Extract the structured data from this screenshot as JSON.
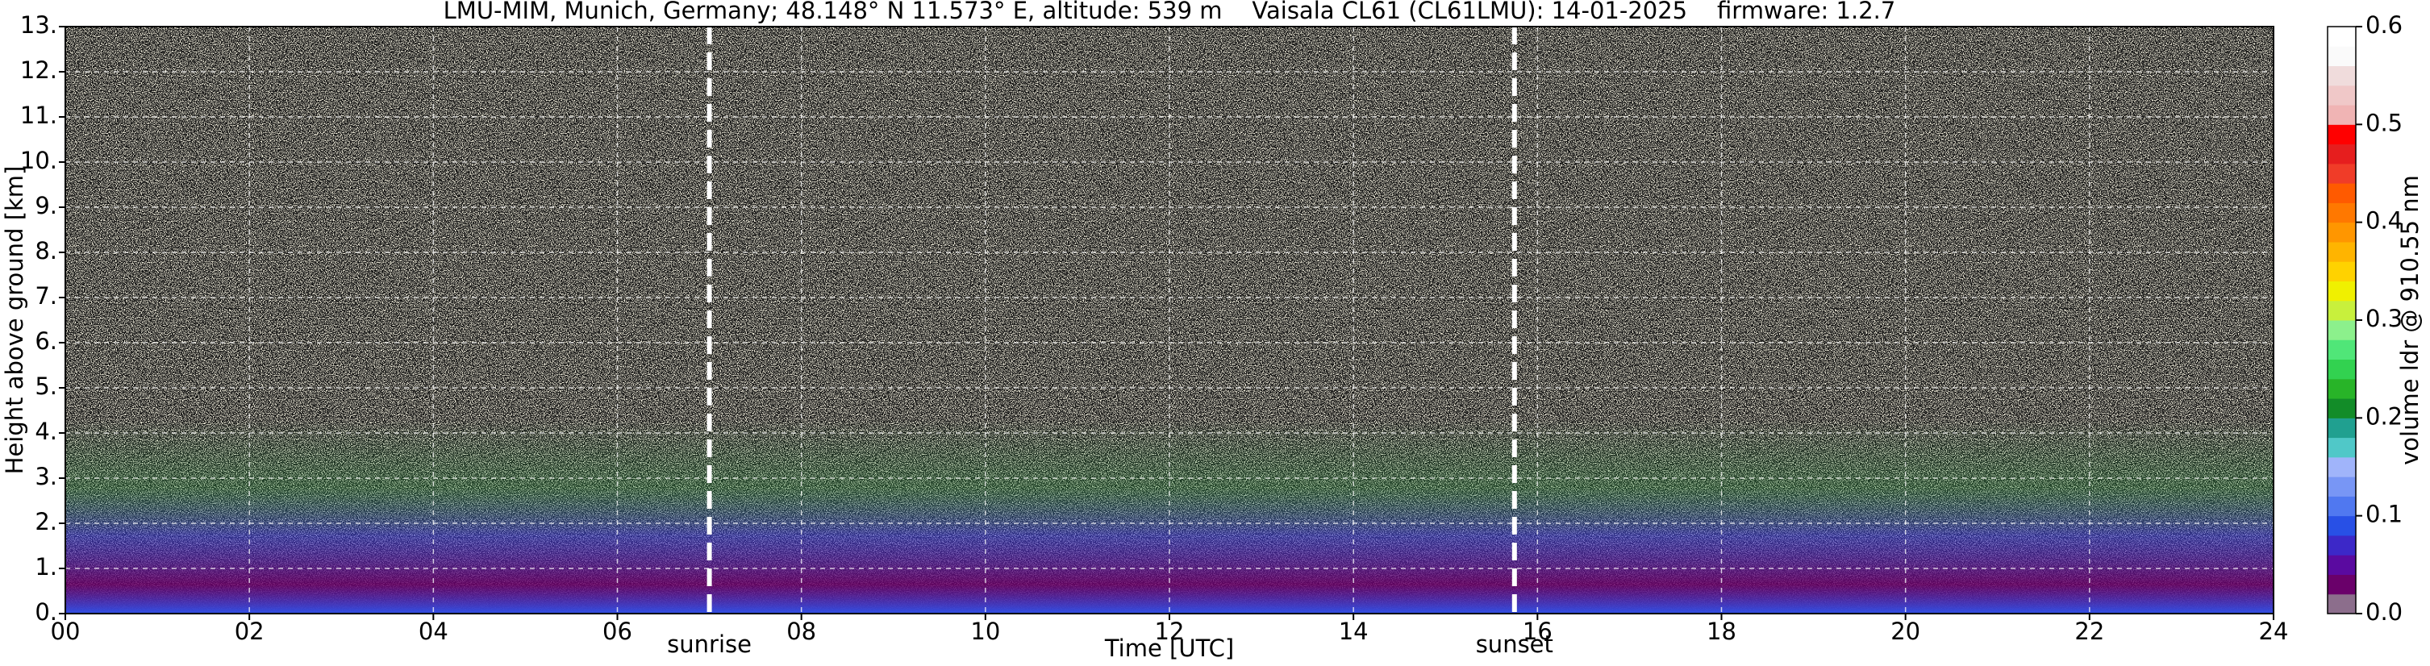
{
  "chart_data": {
    "type": "heatmap",
    "title": "LMU-MIM, Munich, Germany; 48.148° N 11.573° E, altitude: 539 m    Vaisala CL61 (CL61LMU): 14-01-2025    firmware: 1.2.7",
    "x_label": "Time [UTC]",
    "y_label": "Height above ground [km]",
    "xlim": [
      0,
      24
    ],
    "xticks": [
      {
        "value": 0,
        "label": "00"
      },
      {
        "value": 2,
        "label": "02"
      },
      {
        "value": 4,
        "label": "04"
      },
      {
        "value": 6,
        "label": "06"
      },
      {
        "value": 8,
        "label": "08"
      },
      {
        "value": 10,
        "label": "10"
      },
      {
        "value": 12,
        "label": "12"
      },
      {
        "value": 14,
        "label": "14"
      },
      {
        "value": 16,
        "label": "16"
      },
      {
        "value": 18,
        "label": "18"
      },
      {
        "value": 20,
        "label": "20"
      },
      {
        "value": 22,
        "label": "22"
      },
      {
        "value": 24,
        "label": "24"
      }
    ],
    "ylim": [
      0,
      13
    ],
    "yticks": [
      {
        "value": 0,
        "label": "0."
      },
      {
        "value": 1,
        "label": "1."
      },
      {
        "value": 2,
        "label": "2."
      },
      {
        "value": 3,
        "label": "3."
      },
      {
        "value": 4,
        "label": "4."
      },
      {
        "value": 5,
        "label": "5."
      },
      {
        "value": 6,
        "label": "6."
      },
      {
        "value": 7,
        "label": "7."
      },
      {
        "value": 8,
        "label": "8."
      },
      {
        "value": 9,
        "label": "9."
      },
      {
        "value": 10,
        "label": "10."
      },
      {
        "value": 11,
        "label": "11."
      },
      {
        "value": 12,
        "label": "12."
      },
      {
        "value": 13,
        "label": "13."
      }
    ],
    "grid": true,
    "annotations": [
      {
        "x": 7.0,
        "text": "sunrise"
      },
      {
        "x": 15.75,
        "text": "sunset"
      }
    ],
    "colorbar": {
      "label": "volume ldr @ 910.55 nm",
      "lim": [
        0,
        0.6
      ],
      "ticks": [
        {
          "value": 0,
          "label": "0.0"
        },
        {
          "value": 0.1,
          "label": "0.1"
        },
        {
          "value": 0.2,
          "label": "0.2"
        },
        {
          "value": 0.3,
          "label": "0.3"
        },
        {
          "value": 0.4,
          "label": "0.4"
        },
        {
          "value": 0.5,
          "label": "0.5"
        },
        {
          "value": 0.6,
          "label": "0.6"
        }
      ],
      "colors": [
        "#8c6e8c",
        "#6a006a",
        "#5a0aa0",
        "#3c28c8",
        "#2850e6",
        "#5078f0",
        "#7896f5",
        "#a0b4fa",
        "#50c8c8",
        "#20a090",
        "#128c28",
        "#28b428",
        "#32d250",
        "#50e678",
        "#8cf08c",
        "#c8f03c",
        "#f0f000",
        "#ffd200",
        "#ffb400",
        "#ff9600",
        "#ff7800",
        "#ff5a00",
        "#f03c28",
        "#e61e1e",
        "#ff0000",
        "#f0b4b4",
        "#f0c8c8",
        "#f0dcdc",
        "#fafafa",
        "#ffffff"
      ]
    }
  }
}
